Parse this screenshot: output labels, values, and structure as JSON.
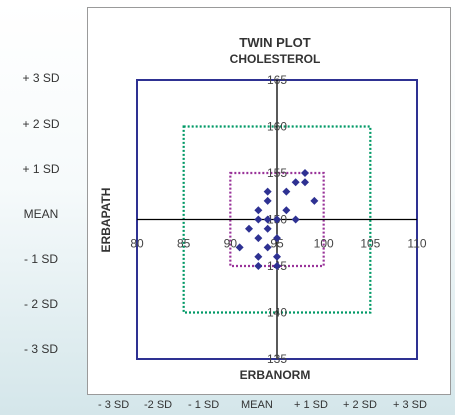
{
  "chart_data": {
    "type": "scatter",
    "title": "TWIN PLOT",
    "subtitle": "CHOLESTEROL",
    "xlabel": "ERBANORM",
    "ylabel": "ERBAPATH",
    "xlim": [
      80,
      110
    ],
    "ylim": [
      135,
      165
    ],
    "x_ticks": [
      80,
      85,
      90,
      95,
      100,
      105,
      110
    ],
    "y_ticks": [
      135,
      140,
      145,
      150,
      155,
      160,
      165
    ],
    "center": {
      "x": 95,
      "y": 150
    },
    "grid": false,
    "boxes": [
      {
        "x": [
          80,
          110
        ],
        "y": [
          135,
          165
        ],
        "color": "#2e3192",
        "style": "solid"
      },
      {
        "x": [
          85,
          105
        ],
        "y": [
          140,
          160
        ],
        "color": "#009966",
        "style": "dotted"
      },
      {
        "x": [
          90,
          100
        ],
        "y": [
          145,
          155
        ],
        "color": "#993399",
        "style": "dotted"
      }
    ],
    "marker_color": "#2e3192",
    "points": [
      {
        "x": 98,
        "y": 155
      },
      {
        "x": 97,
        "y": 154
      },
      {
        "x": 98,
        "y": 154
      },
      {
        "x": 96,
        "y": 153
      },
      {
        "x": 94,
        "y": 153
      },
      {
        "x": 99,
        "y": 152
      },
      {
        "x": 94,
        "y": 152
      },
      {
        "x": 96,
        "y": 151
      },
      {
        "x": 93,
        "y": 151
      },
      {
        "x": 93,
        "y": 150
      },
      {
        "x": 94,
        "y": 150
      },
      {
        "x": 95,
        "y": 150
      },
      {
        "x": 97,
        "y": 150
      },
      {
        "x": 92,
        "y": 149
      },
      {
        "x": 94,
        "y": 149
      },
      {
        "x": 93,
        "y": 148
      },
      {
        "x": 95,
        "y": 148
      },
      {
        "x": 91,
        "y": 147
      },
      {
        "x": 94,
        "y": 147
      },
      {
        "x": 93,
        "y": 146
      },
      {
        "x": 95,
        "y": 146
      },
      {
        "x": 93,
        "y": 145
      },
      {
        "x": 95,
        "y": 145
      }
    ]
  },
  "sd_labels_y": [
    "+ 3 SD",
    "+ 2 SD",
    "+ 1 SD",
    "MEAN",
    "- 1 SD",
    "- 2 SD",
    "- 3 SD"
  ],
  "sd_labels_x": [
    "- 3 SD",
    "-2 SD",
    "- 1 SD",
    "MEAN",
    "+ 1 SD",
    "+ 2 SD",
    "+ 3 SD"
  ]
}
